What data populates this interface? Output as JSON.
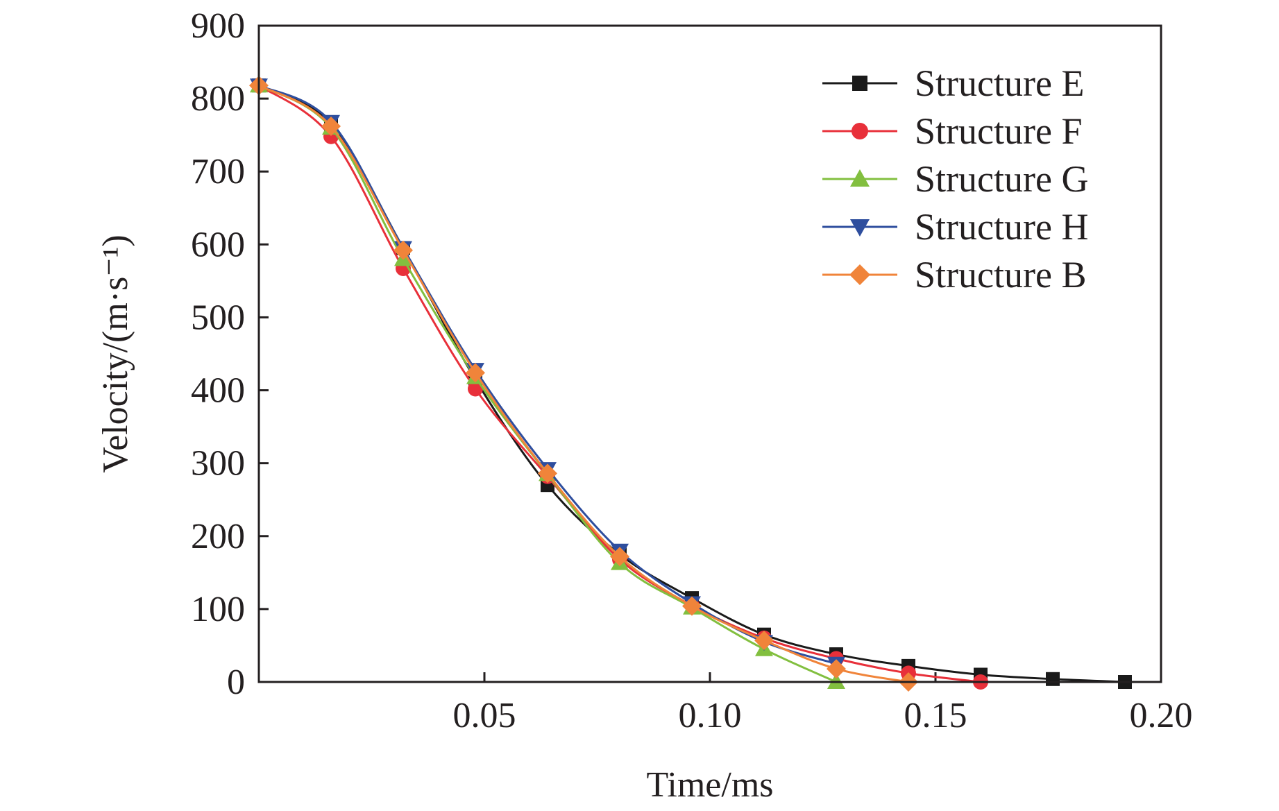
{
  "chart_data": {
    "type": "line",
    "title": "",
    "xlabel": "Time/ms",
    "ylabel": "Velocity/(m·s⁻¹)",
    "xlim": [
      0,
      0.2
    ],
    "ylim": [
      0,
      900
    ],
    "x_ticks": [
      0.05,
      0.1,
      0.15,
      0.2
    ],
    "x_tick_labels": [
      "0.05",
      "0.10",
      "0.15",
      "0.20"
    ],
    "y_ticks": [
      0,
      100,
      200,
      300,
      400,
      500,
      600,
      700,
      800,
      900
    ],
    "y_tick_labels": [
      "0",
      "100",
      "200",
      "300",
      "400",
      "500",
      "600",
      "700",
      "800",
      "900"
    ],
    "grid": false,
    "legend_position": "top-right",
    "series": [
      {
        "name": "Structure E",
        "color": "#1a1a1a",
        "marker": "square",
        "x": [
          0,
          0.016,
          0.032,
          0.048,
          0.064,
          0.08,
          0.096,
          0.112,
          0.128,
          0.144,
          0.16,
          0.176,
          0.192
        ],
        "y": [
          818,
          765,
          595,
          415,
          270,
          175,
          115,
          65,
          38,
          22,
          10,
          4,
          0
        ]
      },
      {
        "name": "Structure F",
        "color": "#e8303a",
        "marker": "circle",
        "x": [
          0,
          0.016,
          0.032,
          0.048,
          0.064,
          0.08,
          0.096,
          0.112,
          0.128,
          0.144,
          0.16
        ],
        "y": [
          818,
          748,
          567,
          402,
          282,
          168,
          105,
          60,
          32,
          12,
          0
        ]
      },
      {
        "name": "Structure G",
        "color": "#82bf3f",
        "marker": "triangle-up",
        "x": [
          0,
          0.016,
          0.032,
          0.048,
          0.064,
          0.08,
          0.096,
          0.112,
          0.128
        ],
        "y": [
          818,
          760,
          580,
          418,
          285,
          163,
          102,
          45,
          0
        ]
      },
      {
        "name": "Structure H",
        "color": "#2e4e9e",
        "marker": "triangle-down",
        "x": [
          0,
          0.016,
          0.032,
          0.048,
          0.064,
          0.08,
          0.096,
          0.112,
          0.128
        ],
        "y": [
          818,
          768,
          595,
          428,
          292,
          180,
          108,
          55,
          25
        ]
      },
      {
        "name": "Structure B",
        "color": "#f0843a",
        "marker": "diamond",
        "x": [
          0,
          0.016,
          0.032,
          0.048,
          0.064,
          0.08,
          0.096,
          0.112,
          0.128,
          0.144
        ],
        "y": [
          818,
          762,
          592,
          424,
          286,
          172,
          104,
          57,
          18,
          0
        ]
      }
    ]
  }
}
